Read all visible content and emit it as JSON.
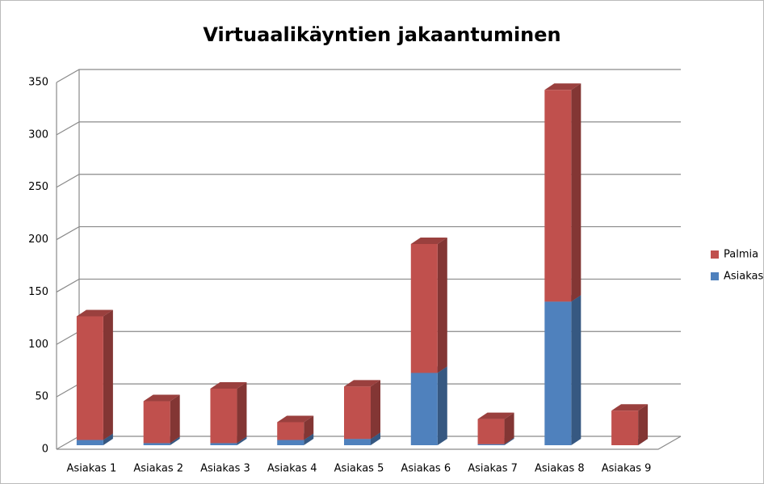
{
  "chart_data": {
    "type": "bar3d_stacked",
    "title": "Virtuaalikäyntien jakaantuminen",
    "categories": [
      "Asiakas 1",
      "Asiakas 2",
      "Asiakas 3",
      "Asiakas 4",
      "Asiakas 5",
      "Asiakas 6",
      "Asiakas 7",
      "Asiakas 8",
      "Asiakas 9"
    ],
    "series": [
      {
        "name": "Asiakas",
        "color": "#4f81bd",
        "values": [
          5,
          2,
          2,
          5,
          6,
          69,
          1,
          137,
          0
        ]
      },
      {
        "name": "Palmia",
        "color": "#c0504d",
        "values": [
          118,
          40,
          52,
          17,
          50,
          123,
          24,
          202,
          33
        ]
      }
    ],
    "ylim": [
      0,
      350
    ],
    "yticks": [
      0,
      50,
      100,
      150,
      200,
      250,
      300,
      350
    ],
    "grid": true,
    "legend": "right"
  }
}
